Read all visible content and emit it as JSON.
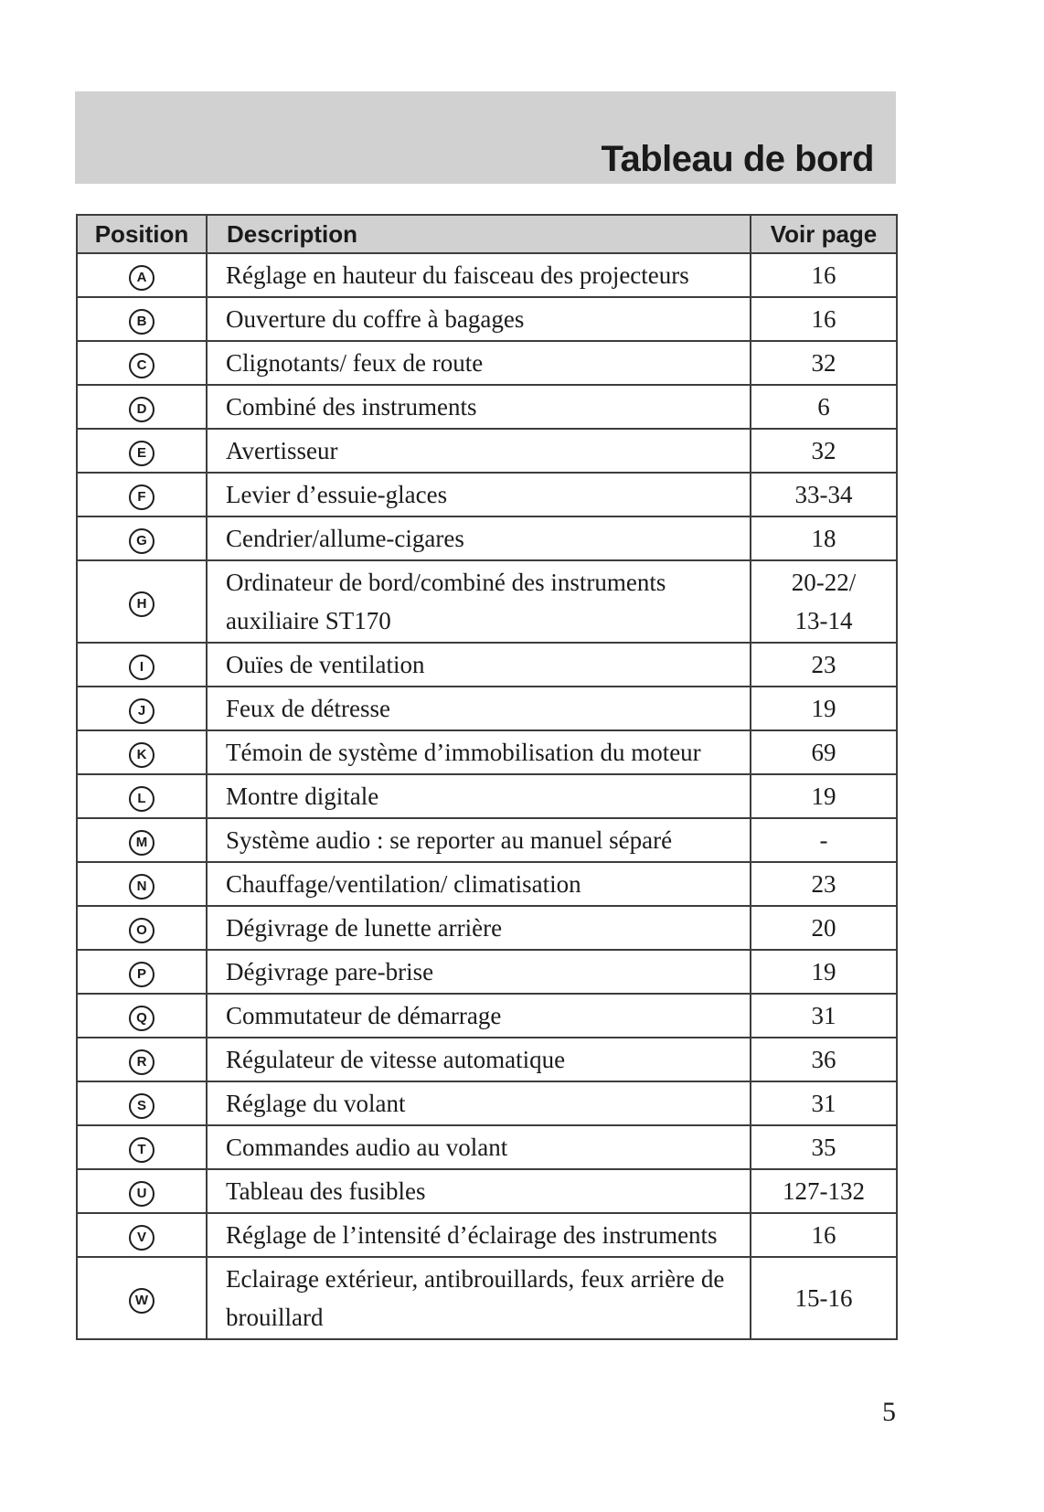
{
  "page": {
    "title": "Tableau de bord",
    "page_number": "5"
  },
  "table": {
    "headers": {
      "position": "Position",
      "description": "Description",
      "page": "Voir page"
    },
    "rows": [
      {
        "position": "A",
        "description": "Réglage en hauteur du faisceau des projecteurs",
        "page": "16"
      },
      {
        "position": "B",
        "description": "Ouverture du coffre à bagages",
        "page": "16"
      },
      {
        "position": "C",
        "description": "Clignotants/ feux de route",
        "page": "32"
      },
      {
        "position": "D",
        "description": "Combiné des instruments",
        "page": "6"
      },
      {
        "position": "E",
        "description": "Avertisseur",
        "page": "32"
      },
      {
        "position": "F",
        "description": "Levier d’essuie-glaces",
        "page": "33-34"
      },
      {
        "position": "G",
        "description": "Cendrier/allume-cigares",
        "page": "18"
      },
      {
        "position": "H",
        "description": "Ordinateur de bord/combiné des instruments auxiliaire ST170",
        "page": "20-22/\n13-14"
      },
      {
        "position": "I",
        "description": "Ouïes de ventilation",
        "page": "23"
      },
      {
        "position": "J",
        "description": "Feux de détresse",
        "page": "19"
      },
      {
        "position": "K",
        "description": "Témoin de système d’immobilisation du moteur",
        "page": "69"
      },
      {
        "position": "L",
        "description": "Montre digitale",
        "page": "19"
      },
      {
        "position": "M",
        "description": "Système audio : se reporter au manuel séparé",
        "page": "-"
      },
      {
        "position": "N",
        "description": "Chauffage/ventilation/ climatisation",
        "page": "23"
      },
      {
        "position": "O",
        "description": "Dégivrage de lunette arrière",
        "page": "20"
      },
      {
        "position": "P",
        "description": "Dégivrage pare-brise",
        "page": "19"
      },
      {
        "position": "Q",
        "description": "Commutateur de démarrage",
        "page": "31"
      },
      {
        "position": "R",
        "description": "Régulateur de vitesse automatique",
        "page": "36"
      },
      {
        "position": "S",
        "description": "Réglage du volant",
        "page": "31"
      },
      {
        "position": "T",
        "description": "Commandes audio au volant",
        "page": "35"
      },
      {
        "position": "U",
        "description": "Tableau des fusibles",
        "page": "127-132"
      },
      {
        "position": "V",
        "description": "Réglage de l’intensité d’éclairage des instruments",
        "page": "16"
      },
      {
        "position": "W",
        "description": "Eclairage extérieur, antibrouillards, feux arrière de brouillard",
        "page": "15-16"
      }
    ]
  }
}
